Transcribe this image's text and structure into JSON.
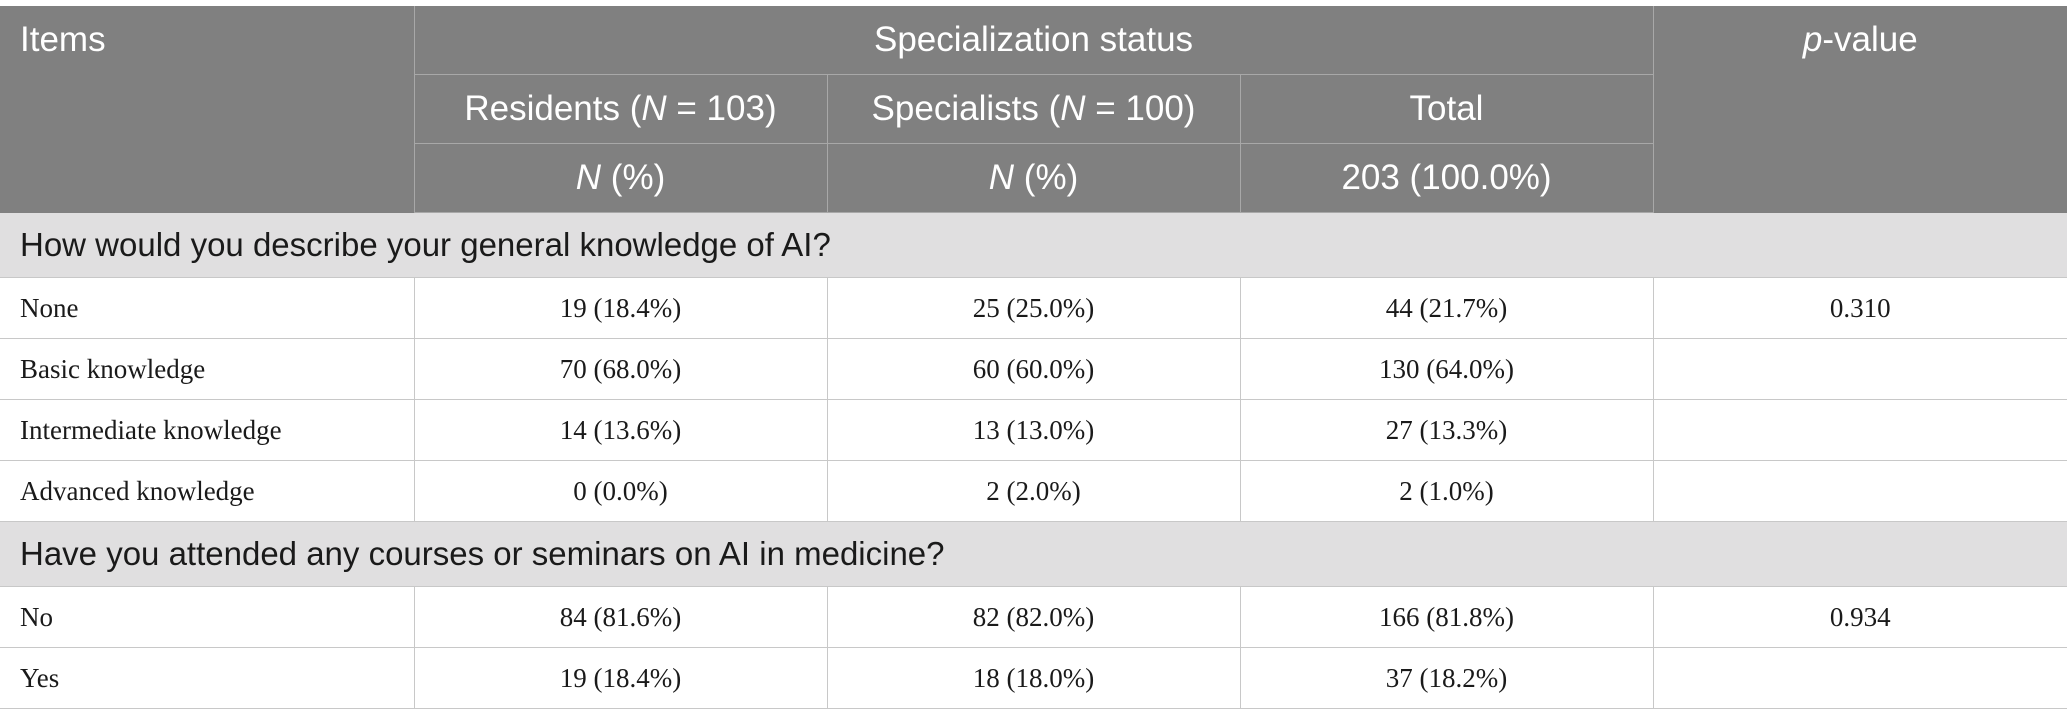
{
  "header": {
    "items": "Items",
    "group_title": "Specialization status",
    "p_value_italic": "p",
    "p_value_rest": "-value",
    "columns": [
      {
        "pre": "Residents (",
        "n": "N",
        "post": " = 103)",
        "sub_n": "N",
        "sub_rest": " (%)"
      },
      {
        "pre": "Specialists (",
        "n": "N",
        "post": " = 100)",
        "sub_n": "N",
        "sub_rest": " (%)"
      }
    ],
    "total": "Total",
    "total_sub": "203 (100.0%)"
  },
  "sections": [
    {
      "title": "How would you describe your general knowledge of AI?",
      "rows": [
        {
          "label": "None",
          "residents": "19 (18.4%)",
          "specialists": "25 (25.0%)",
          "total": "44 (21.7%)",
          "p": "0.310"
        },
        {
          "label": "Basic knowledge",
          "residents": "70 (68.0%)",
          "specialists": "60 (60.0%)",
          "total": "130 (64.0%)",
          "p": ""
        },
        {
          "label": "Intermediate knowledge",
          "residents": "14 (13.6%)",
          "specialists": "13 (13.0%)",
          "total": "27 (13.3%)",
          "p": ""
        },
        {
          "label": "Advanced knowledge",
          "residents": "0 (0.0%)",
          "specialists": "2 (2.0%)",
          "total": "2 (1.0%)",
          "p": ""
        }
      ]
    },
    {
      "title": "Have you attended any courses or seminars on AI in medicine?",
      "rows": [
        {
          "label": "No",
          "residents": "84 (81.6%)",
          "specialists": "82 (82.0%)",
          "total": "166 (81.8%)",
          "p": "0.934"
        },
        {
          "label": "Yes",
          "residents": "19 (18.4%)",
          "specialists": "18 (18.0%)",
          "total": "37 (18.2%)",
          "p": ""
        }
      ]
    }
  ]
}
